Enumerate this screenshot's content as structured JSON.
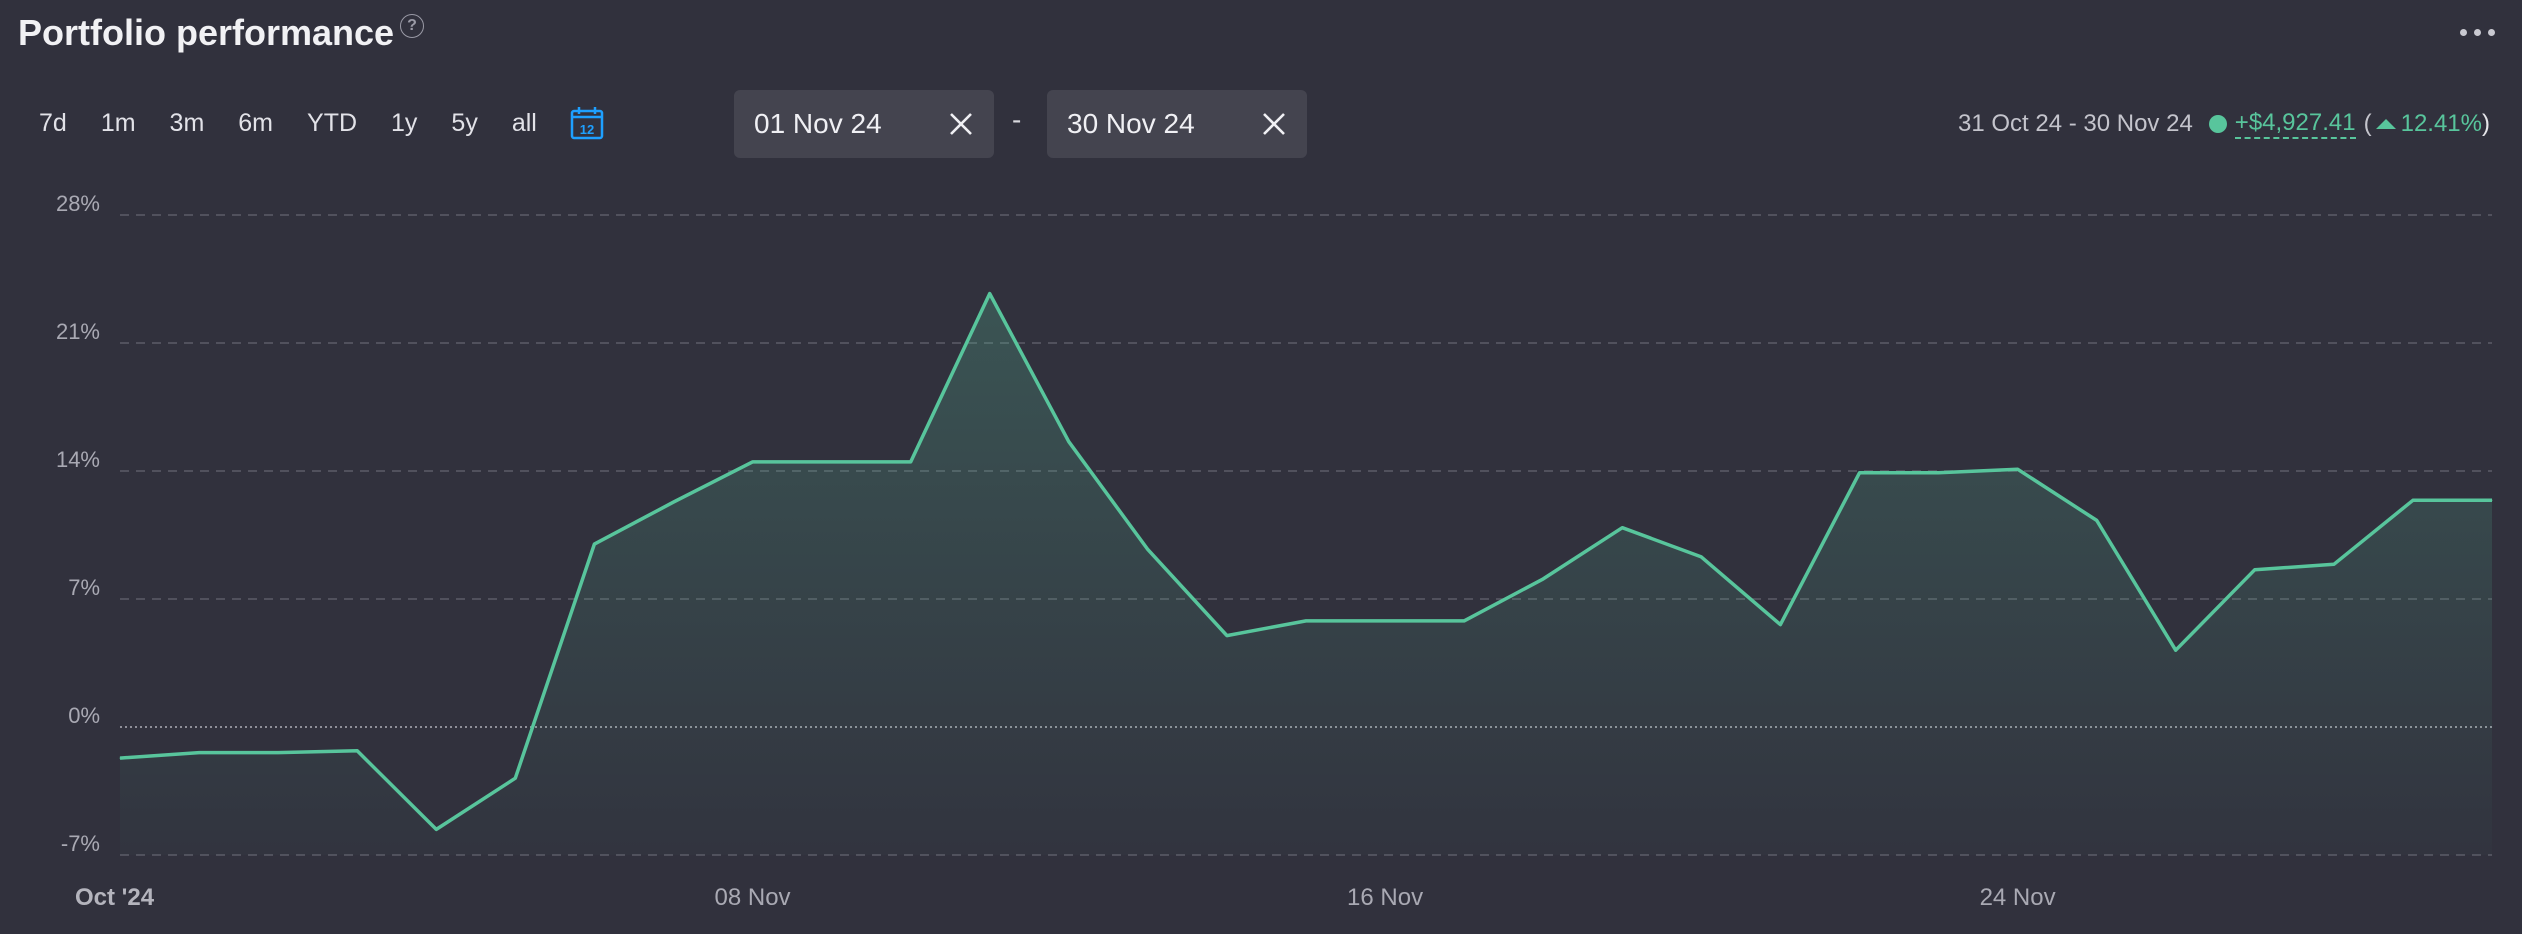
{
  "header": {
    "title": "Portfolio performance",
    "help_glyph": "?"
  },
  "range_buttons": [
    "7d",
    "1m",
    "3m",
    "6m",
    "YTD",
    "1y",
    "5y",
    "all"
  ],
  "calendar": {
    "icon": "calendar-icon",
    "day": "12",
    "color": "#1ea0ff"
  },
  "date_from": {
    "value": "01 Nov 24"
  },
  "date_to": {
    "value": "30 Nov 24"
  },
  "date_separator": "-",
  "summary": {
    "period": "31 Oct 24 - 30 Nov 24",
    "gain": "+$4,927.41",
    "open_paren": "(",
    "pct": "12.41%",
    "close_paren": ")"
  },
  "colors": {
    "background": "#31313d",
    "accent": "#58c59c",
    "grid": "#5c5c68"
  },
  "chart_data": {
    "type": "area",
    "x": [
      "2024-10-31",
      "2024-11-01",
      "2024-11-02",
      "2024-11-03",
      "2024-11-04",
      "2024-11-05",
      "2024-11-06",
      "2024-11-07",
      "2024-11-08",
      "2024-11-09",
      "2024-11-10",
      "2024-11-11",
      "2024-11-12",
      "2024-11-13",
      "2024-11-14",
      "2024-11-15",
      "2024-11-16",
      "2024-11-17",
      "2024-11-18",
      "2024-11-19",
      "2024-11-20",
      "2024-11-21",
      "2024-11-22",
      "2024-11-23",
      "2024-11-24",
      "2024-11-25",
      "2024-11-26",
      "2024-11-27",
      "2024-11-28",
      "2024-11-29",
      "2024-11-30"
    ],
    "values": [
      -1.7,
      -1.4,
      -1.4,
      -1.3,
      -5.6,
      -2.8,
      10.0,
      12.3,
      14.5,
      14.5,
      14.5,
      23.7,
      15.6,
      9.7,
      5.0,
      5.8,
      5.8,
      5.8,
      8.1,
      10.9,
      9.3,
      5.6,
      13.9,
      13.9,
      14.1,
      11.3,
      4.2,
      8.6,
      8.9,
      12.4,
      12.4
    ],
    "ylim": [
      -7,
      28
    ],
    "yticks": [
      -7,
      0,
      7,
      14,
      21,
      28
    ],
    "ytick_labels": [
      "-7%",
      "0%",
      "7%",
      "14%",
      "21%",
      "28%"
    ],
    "xtick_labels": [
      {
        "label": "Oct '24",
        "x": "2024-10-31"
      },
      {
        "label": "08 Nov",
        "x": "2024-11-08"
      },
      {
        "label": "16 Nov",
        "x": "2024-11-16"
      },
      {
        "label": "24 Nov",
        "x": "2024-11-24"
      }
    ],
    "grid": true,
    "zero_line": true
  }
}
